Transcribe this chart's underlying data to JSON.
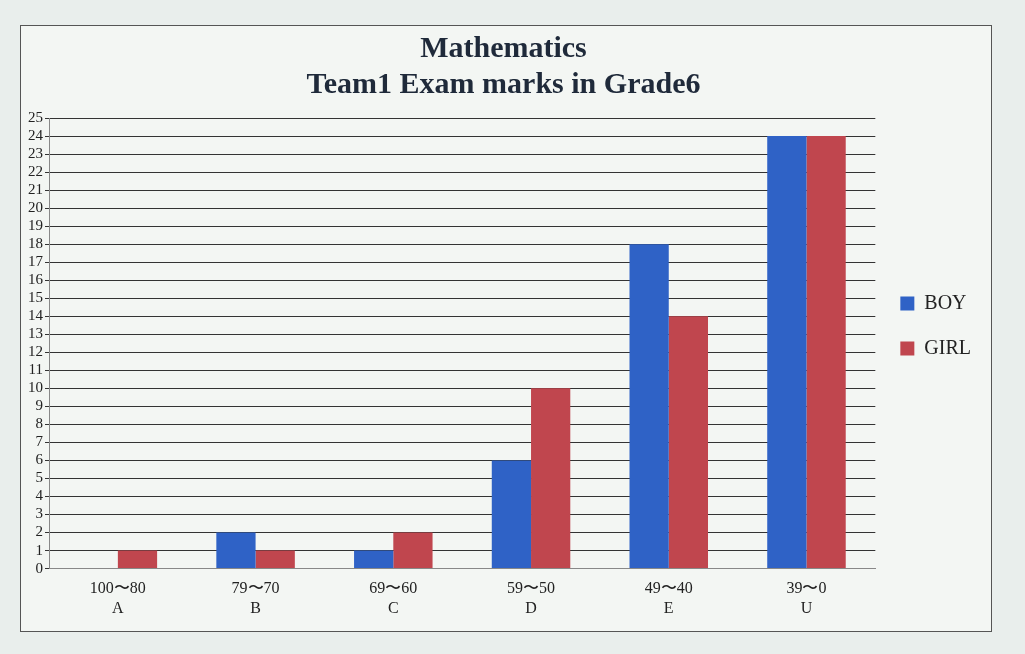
{
  "chart_data": {
    "type": "bar",
    "title": "Mathematics\nTeam1 Exam marks in Grade6",
    "categories": [
      "100〜80\nA",
      "79〜70\nB",
      "69〜60\nC",
      "59〜50\nD",
      "49〜40\nE",
      "39〜0\nU"
    ],
    "series": [
      {
        "name": "BOY",
        "color": "#2f62c6",
        "values": [
          0,
          2,
          1,
          6,
          18,
          24
        ]
      },
      {
        "name": "GIRL",
        "color": "#c0464e",
        "values": [
          1,
          1,
          2,
          10,
          14,
          24
        ]
      }
    ],
    "ylim": [
      0,
      25
    ],
    "yticks": [
      0,
      1,
      2,
      3,
      4,
      5,
      6,
      7,
      8,
      9,
      10,
      11,
      12,
      13,
      14,
      15,
      16,
      17,
      18,
      19,
      20,
      21,
      22,
      23,
      24,
      25
    ],
    "grid": "y",
    "legend": "right"
  }
}
